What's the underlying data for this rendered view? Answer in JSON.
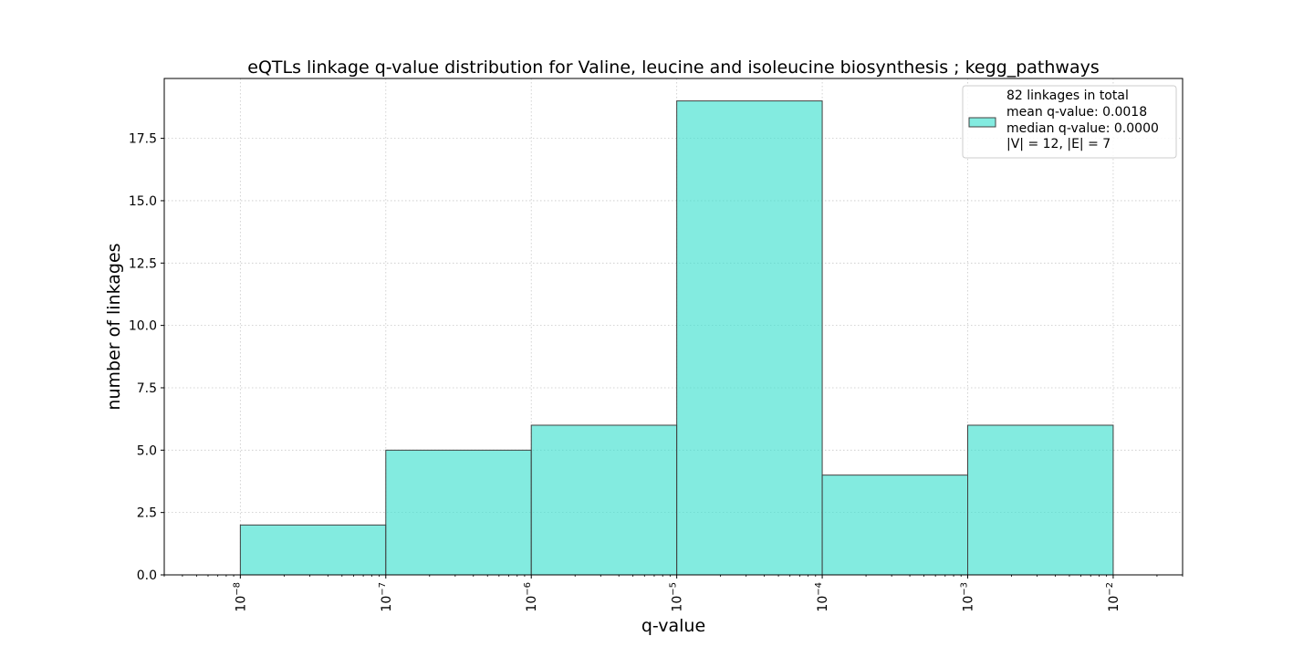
{
  "chart_data": {
    "type": "bar",
    "title": "eQTLs linkage q-value distribution for Valine, leucine and isoleucine biosynthesis ; kegg_pathways",
    "xlabel": "q-value",
    "ylabel": "number of linkages",
    "x_scale": "log",
    "xlim": [
      3e-09,
      0.03
    ],
    "ylim": [
      0,
      19.9
    ],
    "bins": [
      {
        "x_start": 1e-08,
        "x_end": 1e-07,
        "value": 2
      },
      {
        "x_start": 1e-07,
        "x_end": 1e-06,
        "value": 5
      },
      {
        "x_start": 1e-06,
        "x_end": 1e-05,
        "value": 6
      },
      {
        "x_start": 1e-05,
        "x_end": 0.0001,
        "value": 19
      },
      {
        "x_start": 0.0001,
        "x_end": 0.001,
        "value": 4
      },
      {
        "x_start": 0.001,
        "x_end": 0.01,
        "value": 6
      }
    ],
    "y_ticks": [
      "0.0",
      "2.5",
      "5.0",
      "7.5",
      "10.0",
      "12.5",
      "15.0",
      "17.5"
    ],
    "y_tick_values": [
      0,
      2.5,
      5,
      7.5,
      10,
      12.5,
      15,
      17.5
    ],
    "x_tick_exponents": [
      "-8",
      "-7",
      "-6",
      "-5",
      "-4",
      "-3",
      "-2"
    ],
    "x_tick_base": "10",
    "grid": true,
    "legend_position": "top-right",
    "legend": [
      "82 linkages in total",
      "mean q-value: 0.0018",
      "median q-value: 0.0000",
      "|V| = 12, |E| = 7"
    ],
    "colors": {
      "bar_fill": "#40e0d0",
      "bar_opacity": 0.65,
      "bar_edge": "#404040",
      "grid": "#c8c8c8"
    }
  }
}
